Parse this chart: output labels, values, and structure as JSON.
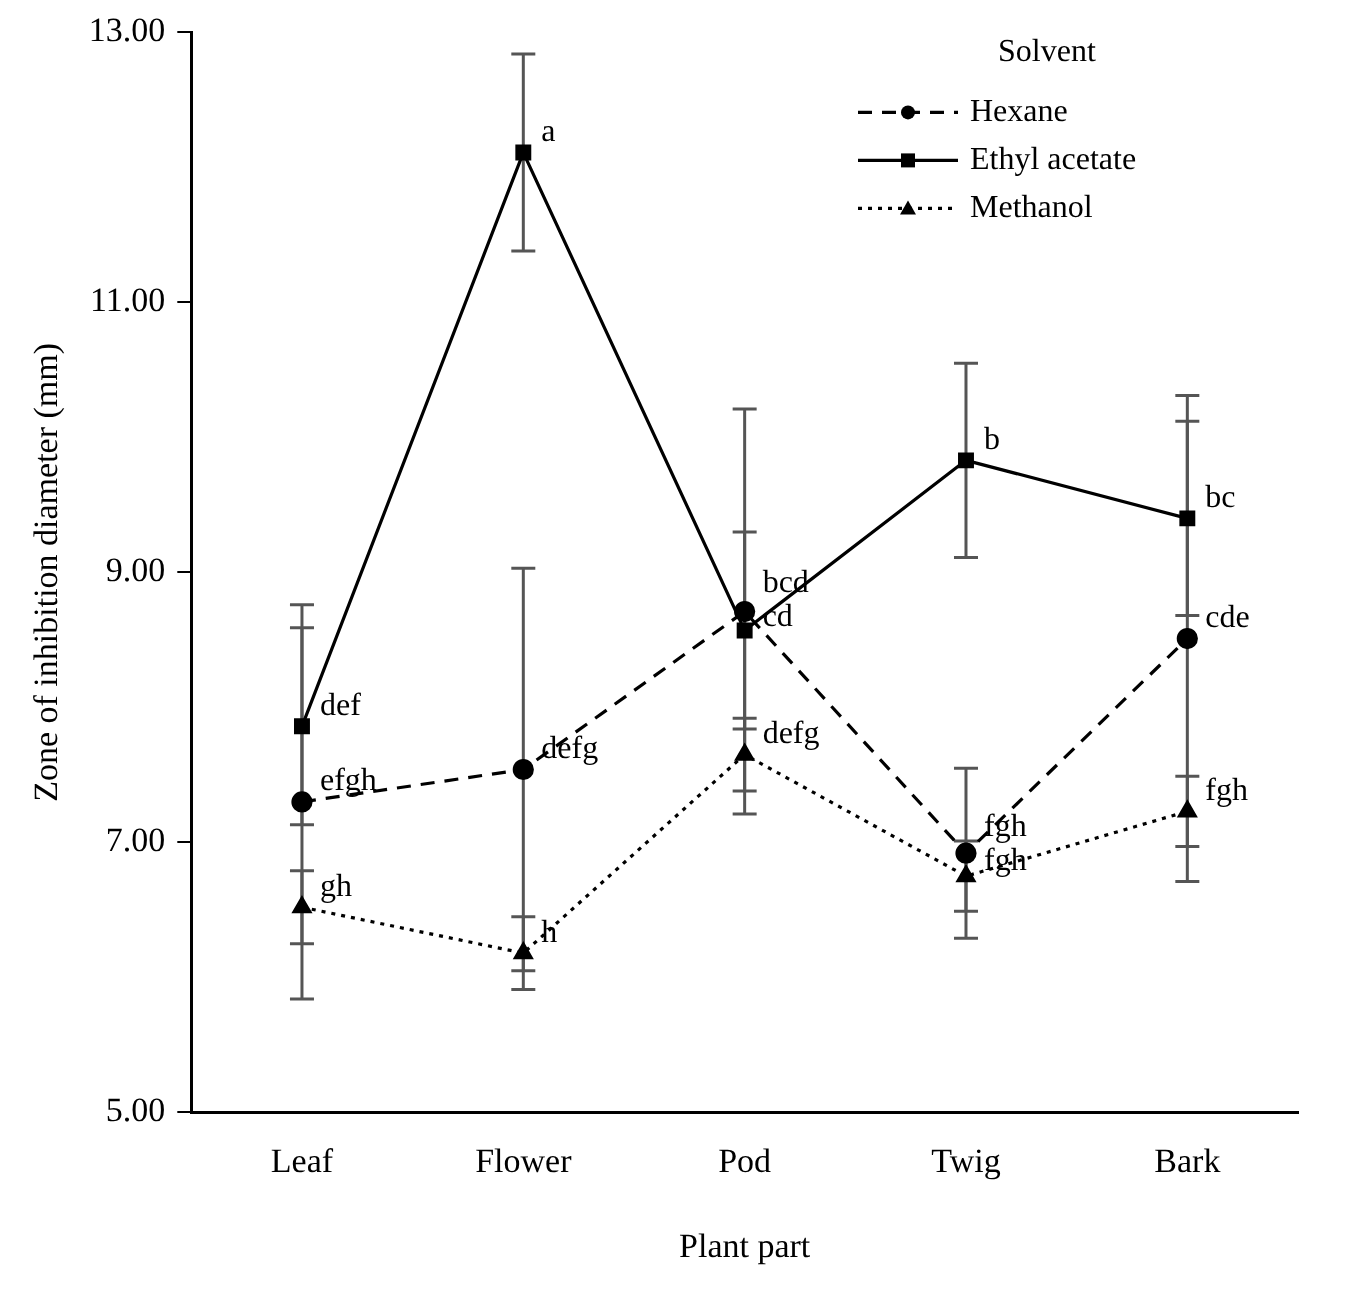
{
  "chart_data": {
    "type": "line",
    "xlabel": "Plant part",
    "ylabel": "Zone of inhibition diameter (mm)",
    "legend_title": "Solvent",
    "legend": "top right",
    "categories": [
      "Leaf",
      "Flower",
      "Pod",
      "Twig",
      "Bark"
    ],
    "ylim": [
      5,
      13
    ],
    "yticks": [
      {
        "value": 5,
        "label": "5.00"
      },
      {
        "value": 7,
        "label": "7.00"
      },
      {
        "value": 9,
        "label": "9.00"
      },
      {
        "value": 11,
        "label": "11.00"
      },
      {
        "value": 13,
        "label": "13.00"
      }
    ],
    "grid": false,
    "series": [
      {
        "name": "Hexane",
        "color": "#000000",
        "marker": "circle",
        "line_style": "dashed",
        "values": [
          7.3,
          7.54,
          8.71,
          6.92,
          8.51
        ],
        "errors": [
          1.46,
          1.49,
          1.5,
          0.63,
          1.8
        ]
      },
      {
        "name": "Ethyl acetate",
        "color": "#000000",
        "marker": "square",
        "line_style": "solid",
        "values": [
          7.86,
          12.11,
          8.57,
          9.83,
          9.4
        ],
        "errors": [
          0.73,
          0.73,
          0.73,
          0.72,
          0.72
        ]
      },
      {
        "name": "Methanol",
        "color": "#000000",
        "marker": "triangle",
        "line_style": "dotted",
        "values": [
          6.52,
          6.18,
          7.65,
          6.75,
          7.23
        ],
        "errors": [
          0.27,
          0.27,
          0.27,
          0.26,
          0.26
        ]
      }
    ],
    "annotations": [
      {
        "text": "def",
        "x": "Leaf",
        "y": 7.86
      },
      {
        "text": "efgh",
        "x": "Leaf",
        "y": 7.3
      },
      {
        "text": "gh",
        "x": "Leaf",
        "y": 6.52
      },
      {
        "text": "a",
        "x": "Flower",
        "y": 12.11
      },
      {
        "text": "defg",
        "x": "Flower",
        "y": 7.54
      },
      {
        "text": "h",
        "x": "Flower",
        "y": 6.18
      },
      {
        "text": "bcd",
        "x": "Pod",
        "y": 8.71
      },
      {
        "text": "cd",
        "x": "Pod",
        "y": 8.57
      },
      {
        "text": "defg",
        "x": "Pod",
        "y": 7.65
      },
      {
        "text": "b",
        "x": "Twig",
        "y": 9.83
      },
      {
        "text": "fgh",
        "x": "Twig",
        "y": 6.92
      },
      {
        "text": "fgh",
        "x": "Twig",
        "y": 6.75
      },
      {
        "text": "bc",
        "x": "Bark",
        "y": 9.4
      },
      {
        "text": "cde",
        "x": "Bark",
        "y": 8.51
      },
      {
        "text": "fgh",
        "x": "Bark",
        "y": 7.23
      }
    ]
  }
}
